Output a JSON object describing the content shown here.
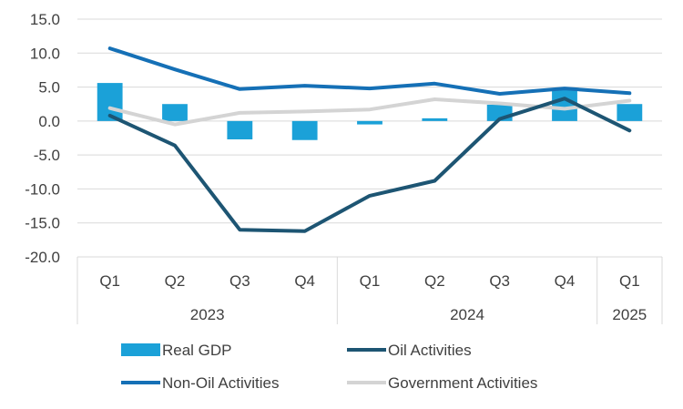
{
  "chart_data": {
    "type": "bar",
    "title": "",
    "xlabel": "",
    "ylabel": "",
    "ylim": [
      -20,
      15
    ],
    "yticks": [
      15.0,
      10.0,
      5.0,
      0.0,
      -5.0,
      -10.0,
      -15.0,
      -20.0
    ],
    "ytick_labels": [
      "15.0",
      "10.0",
      "5.0",
      "0.0",
      "-5.0",
      "-10.0",
      "-15.0",
      "-20.0"
    ],
    "grid": true,
    "legend_position": "bottom",
    "categories": [
      "Q1",
      "Q2",
      "Q3",
      "Q4",
      "Q1",
      "Q2",
      "Q3",
      "Q4",
      "Q1"
    ],
    "year_groups": [
      {
        "label": "2023",
        "start": 0,
        "end": 3
      },
      {
        "label": "2024",
        "start": 4,
        "end": 7
      },
      {
        "label": "2025",
        "start": 8,
        "end": 8
      }
    ],
    "series": [
      {
        "name": "Real GDP",
        "type": "bar",
        "color": "#1ba1d8",
        "values": [
          5.6,
          2.5,
          -2.7,
          -2.8,
          -0.5,
          0.4,
          2.4,
          4.7,
          2.5
        ]
      },
      {
        "name": "Oil Activities",
        "type": "line",
        "color": "#1d5573",
        "values": [
          0.8,
          -3.6,
          -16.0,
          -16.2,
          -11.0,
          -8.8,
          0.3,
          3.3,
          -1.4
        ]
      },
      {
        "name": "Non-Oil Activities",
        "type": "line",
        "color": "#1570b6",
        "values": [
          10.7,
          7.6,
          4.7,
          5.2,
          4.8,
          5.5,
          4.0,
          4.8,
          4.1
        ]
      },
      {
        "name": "Government Activities",
        "type": "line",
        "color": "#d4d4d4",
        "values": [
          1.9,
          -0.5,
          1.2,
          1.4,
          1.7,
          3.2,
          2.6,
          1.8,
          3.0
        ]
      }
    ]
  }
}
